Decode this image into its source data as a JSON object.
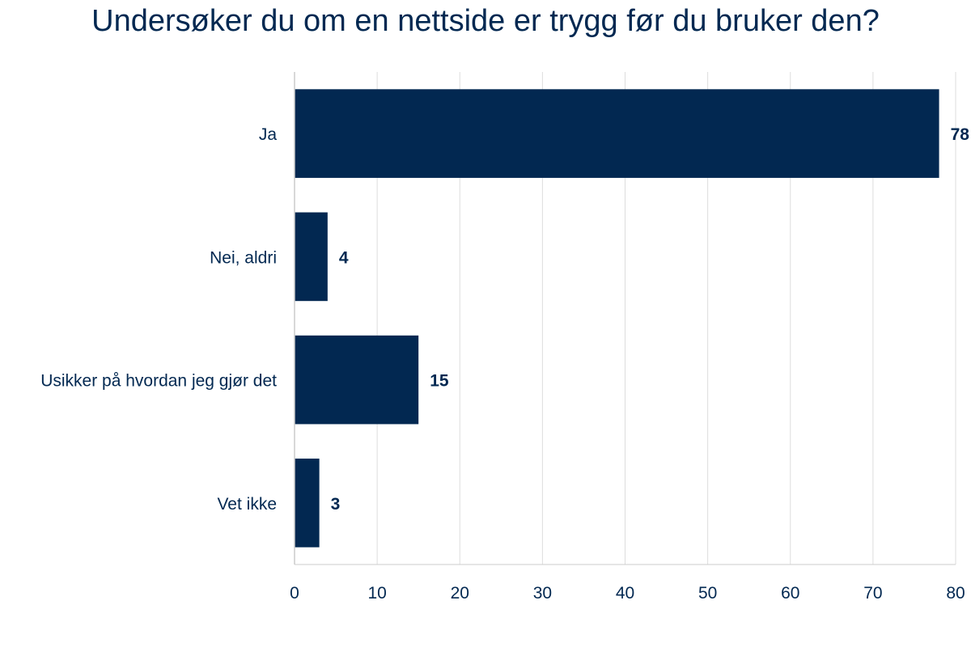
{
  "chart_data": {
    "type": "bar",
    "orientation": "horizontal",
    "title": "Undersøker du om en nettside er trygg før du bruker den?",
    "categories": [
      "Ja",
      "Nei, aldri",
      "Usikker på hvordan jeg gjør det",
      "Vet ikke"
    ],
    "values": [
      78,
      4,
      15,
      3
    ],
    "data_labels": [
      "78",
      "4",
      "15",
      "3"
    ],
    "xlabel": "",
    "ylabel": "",
    "xlim": [
      0,
      80
    ],
    "x_ticks": [
      0,
      10,
      20,
      30,
      40,
      50,
      60,
      70,
      80
    ],
    "x_tick_labels": [
      "0",
      "10",
      "20",
      "30",
      "40",
      "50",
      "60",
      "70",
      "80"
    ],
    "grid": true,
    "legend": "none"
  },
  "colors": {
    "bar": "#022851",
    "text": "#022851",
    "grid": "#dddddd",
    "axis": "#cccccc",
    "background": "#ffffff"
  }
}
